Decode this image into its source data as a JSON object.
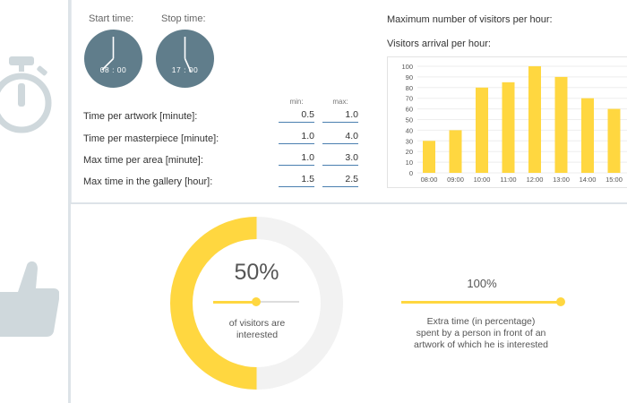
{
  "clocks": [
    {
      "label": "Start time:",
      "time": "08 : 00"
    },
    {
      "label": "Stop time:",
      "time": "17 : 00"
    }
  ],
  "params": {
    "min_label": "min:",
    "max_label": "max:",
    "rows": [
      {
        "label": "Time per artwork [minute]:",
        "min": "0.5",
        "max": "1.0"
      },
      {
        "label": "Time per masterpiece [minute]:",
        "min": "1.0",
        "max": "4.0"
      },
      {
        "label": "Max time per area [minute]:",
        "min": "1.0",
        "max": "3.0"
      },
      {
        "label": "Max time in the gallery [hour]:",
        "min": "1.5",
        "max": "2.5"
      }
    ]
  },
  "max_visitors_label": "Maximum number of visitors per hour:",
  "arrival_label": "Visitors arrival per hour:",
  "chart_data": {
    "type": "bar",
    "categories": [
      "08:00",
      "09:00",
      "10:00",
      "11:00",
      "12:00",
      "13:00",
      "14:00",
      "15:00"
    ],
    "values": [
      30,
      40,
      80,
      85,
      100,
      90,
      70,
      60
    ],
    "ylim": [
      0,
      100
    ],
    "yticks": [
      0,
      10,
      20,
      30,
      40,
      50,
      60,
      70,
      80,
      90,
      100
    ],
    "grid": true,
    "bar_color": "#ffd740"
  },
  "interest": {
    "value": "50%",
    "fraction": 0.5,
    "caption_line1": "of visitors are",
    "caption_line2": "interested"
  },
  "extra_time": {
    "value": "100%",
    "fraction": 1.0,
    "caption_line1": "Extra time (in percentage)",
    "caption_line2": "spent by a person in front of an",
    "caption_line3": "artwork of which he is interested"
  },
  "colors": {
    "accent": "#ffd740",
    "clock": "#607d8b",
    "icon_gray": "#cfd8dc",
    "input_underline": "#4a7fb0"
  },
  "icons": {
    "sidebar_top": "stopwatch-icon",
    "sidebar_bottom": "thumbs-up-icon"
  }
}
